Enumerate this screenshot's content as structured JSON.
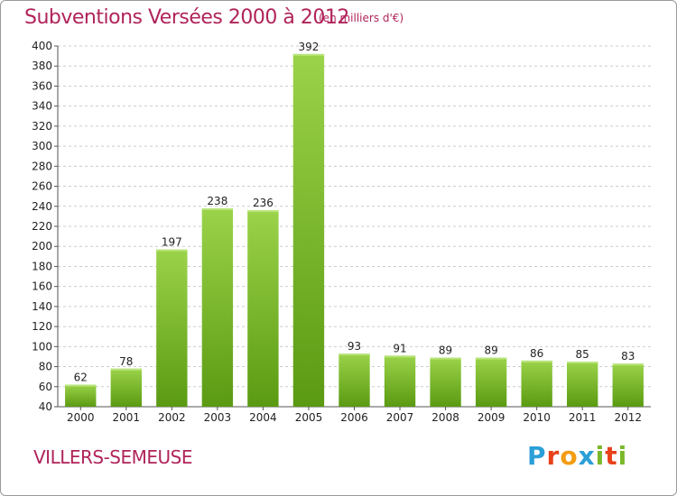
{
  "title": "Subventions Versées 2000 à 2012",
  "subtitle": "(en milliers d'€)",
  "commune": "VILLERS-SEMEUSE",
  "brand": "Proxiti",
  "colors": {
    "title": "#b0245a",
    "bar_top": "#9bd34a",
    "bar_bottom": "#5a9a12",
    "grid": "#cccccc"
  },
  "chart_data": {
    "type": "bar",
    "title": "Subventions Versées 2000 à 2012",
    "subtitle": "(en milliers d'€)",
    "xlabel": "",
    "ylabel": "",
    "categories": [
      "2000",
      "2001",
      "2002",
      "2003",
      "2004",
      "2005",
      "2006",
      "2007",
      "2008",
      "2009",
      "2010",
      "2011",
      "2012"
    ],
    "values": [
      62,
      78,
      197,
      238,
      236,
      392,
      93,
      91,
      89,
      89,
      86,
      85,
      83
    ],
    "ylim": [
      40,
      400
    ],
    "yticks": [
      40,
      60,
      80,
      100,
      120,
      140,
      160,
      180,
      200,
      220,
      240,
      260,
      280,
      300,
      320,
      340,
      360,
      380,
      400
    ],
    "grid": true,
    "legend": "none"
  }
}
